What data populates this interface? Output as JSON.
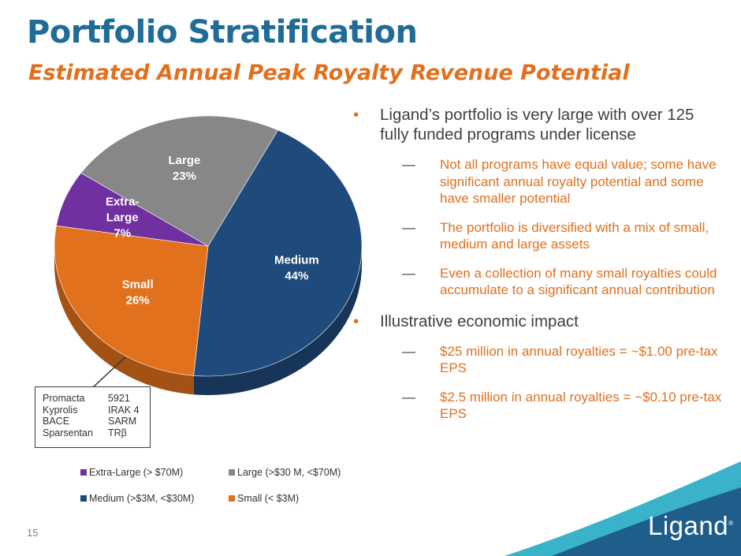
{
  "header": {
    "title": "Portfolio Stratification",
    "subtitle": "Estimated Annual Peak Royalty Revenue Potential"
  },
  "chart_data": {
    "type": "pie",
    "title": "Estimated Annual Peak Royalty Revenue Potential",
    "categories": [
      "Medium",
      "Small",
      "Extra-Large",
      "Large"
    ],
    "values": [
      44,
      26,
      7,
      23
    ],
    "data_labels": [
      "Medium\n44%",
      "Small\n26%",
      "Extra-\nLarge\n7%",
      "Large\n23%"
    ],
    "colors": [
      "#1f4a7c",
      "#e2711d",
      "#7030a0",
      "#878787"
    ],
    "legend": [
      {
        "label": "Extra-Large (> $70M)",
        "color": "#7030a0"
      },
      {
        "label": "Large (>$30 M, <$70M)",
        "color": "#878787"
      },
      {
        "label": "Medium (>$3M, <$30M)",
        "color": "#1f4a7c"
      },
      {
        "label": "Small (< $3M)",
        "color": "#e2711d"
      }
    ],
    "legend_position": "bottom"
  },
  "callout": {
    "col1": [
      "Promacta",
      "Kyprolis",
      "BACE",
      "Sparsentan"
    ],
    "col2": [
      "5921",
      "IRAK 4",
      "SARM",
      "TRβ"
    ]
  },
  "bullets": [
    {
      "text": "Ligand’s portfolio is very large with over 125 fully funded programs under license",
      "subs": [
        "Not all programs have equal value; some have significant annual royalty potential and some have smaller potential",
        "The portfolio is diversified with a mix of small, medium and large assets",
        "Even a collection of many small royalties could accumulate to a significant annual contribution"
      ]
    },
    {
      "text": "Illustrative economic impact",
      "subs": [
        "$25 million in annual royalties = ~$1.00 pre-tax EPS",
        "$2.5 million in annual royalties = ~$0.10 pre-tax EPS"
      ]
    }
  ],
  "bullet_marker": "•",
  "sub_marker": "—",
  "footer": {
    "page_number": "15",
    "logo_text": "Ligand",
    "logo_mark": "®"
  },
  "colors": {
    "title": "#1f6c99",
    "accent": "#e0701e",
    "band_dark": "#1f5e8a",
    "band_teal": "#3ab2c9"
  }
}
